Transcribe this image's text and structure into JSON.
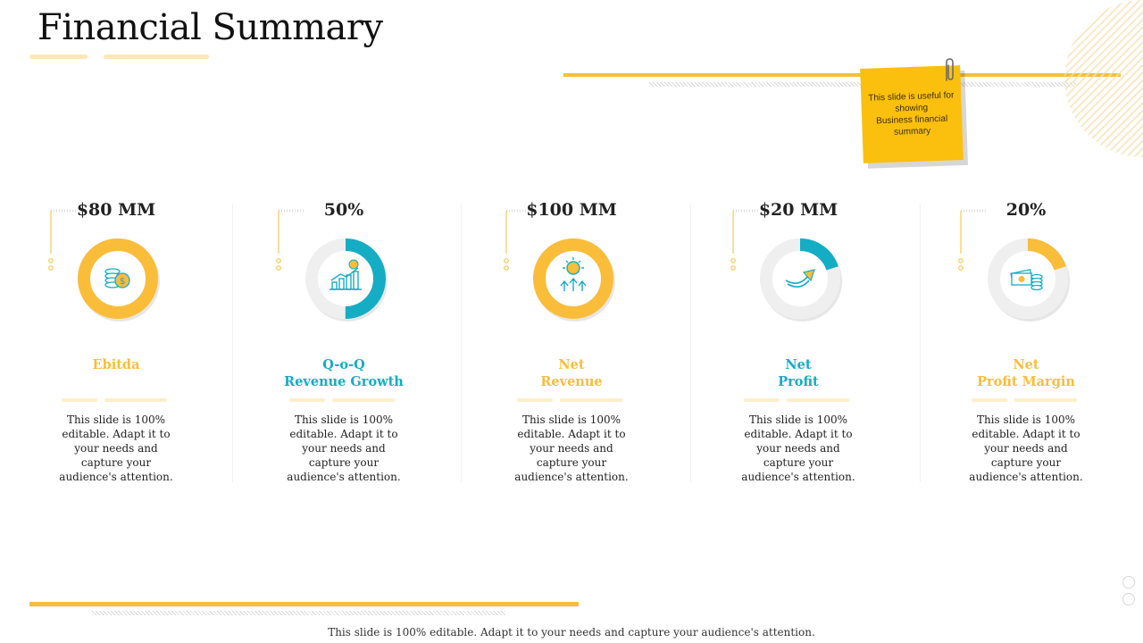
{
  "slide": {
    "title": "Financial Summary",
    "footer": "This slide is 100%  editable.  Adapt  it to your needs  and  capture  your audience's  attention."
  },
  "sticky_note": {
    "lines": [
      "This slide is useful for",
      "showing",
      "Business financial",
      "summary"
    ]
  },
  "cards": [
    {
      "value": "$80 MM",
      "label_lines": [
        "Ebitda"
      ],
      "description_lines": [
        "This slide is 100%",
        "editable. Adapt it to",
        "your needs and",
        "capture your",
        "audience's attention."
      ],
      "fill": 1.0,
      "color": "#f9bd3a",
      "icon": "coins-icon"
    },
    {
      "value": "50%",
      "label_lines": [
        "Q-o-Q",
        "Revenue Growth"
      ],
      "description_lines": [
        "This slide is 100%",
        "editable. Adapt it to",
        "your needs and",
        "capture your",
        "audience's attention."
      ],
      "fill": 0.5,
      "color": "#14adc4",
      "icon": "growth-chart-icon"
    },
    {
      "value": "$100 MM",
      "label_lines": [
        "Net",
        "Revenue"
      ],
      "description_lines": [
        "This slide is 100%",
        "editable. Adapt it to",
        "your needs and",
        "capture your",
        "audience's attention."
      ],
      "fill": 1.0,
      "color": "#f9bd3a",
      "icon": "dollar-arrows-icon"
    },
    {
      "value": "$20 MM",
      "label_lines": [
        "Net",
        "Profit"
      ],
      "description_lines": [
        "This slide is 100%",
        "editable. Adapt it to",
        "your needs and",
        "capture your",
        "audience's attention."
      ],
      "fill": 0.2,
      "color": "#14adc4",
      "icon": "trend-arrow-icon"
    },
    {
      "value": "20%",
      "label_lines": [
        "Net",
        "Profit Margin"
      ],
      "description_lines": [
        "This slide is 100%",
        "editable. Adapt it to",
        "your needs and",
        "capture your",
        "audience's attention."
      ],
      "fill": 0.2,
      "color": "#f9bd3a",
      "icon": "cash-stack-icon"
    }
  ],
  "colors": {
    "accent_yellow": "#f9bd3a",
    "accent_teal": "#14adc4",
    "track_gray": "#efefef",
    "sticky_yellow": "#fbbf0d"
  }
}
